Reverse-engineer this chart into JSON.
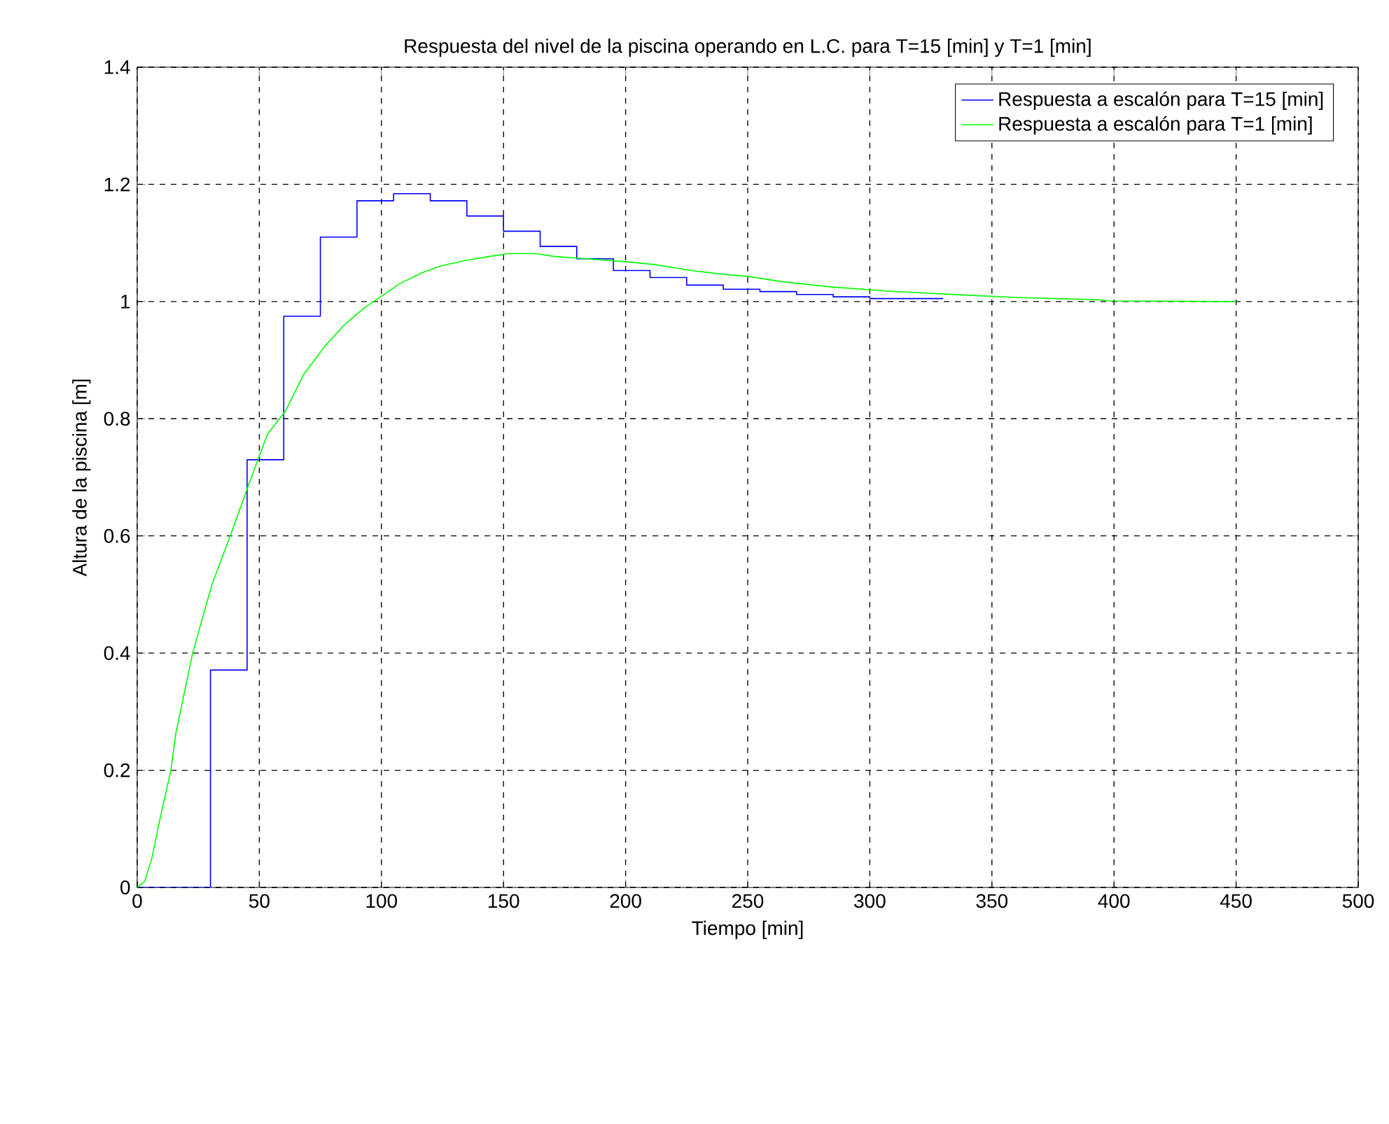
{
  "chart_data": {
    "type": "line",
    "title": "Respuesta del nivel de la piscina operando en L.C. para T=15 [min] y T=1 [min]",
    "xlabel": "Tiempo [min]",
    "ylabel": "Altura de la piscina [m]",
    "xlim": [
      0,
      500
    ],
    "ylim": [
      0,
      1.4
    ],
    "xticks": [
      0,
      50,
      100,
      150,
      200,
      250,
      300,
      350,
      400,
      450,
      500
    ],
    "yticks": [
      0,
      0.2,
      0.4,
      0.6,
      0.8,
      1,
      1.2,
      1.4
    ],
    "grid": true,
    "legend": "top right",
    "marker": "none",
    "line_style": "solid",
    "series": [
      {
        "name": "Respuesta a escalón para T=15 [min]",
        "type": "step",
        "color": "#0000ff",
        "x": [
          0,
          15,
          30,
          45,
          60,
          75,
          90,
          105,
          120,
          135,
          150,
          165,
          180,
          195,
          210,
          225,
          240,
          255,
          270,
          285,
          300,
          315,
          330
        ],
        "values": [
          0,
          0,
          0.371,
          0.73,
          0.975,
          1.11,
          1.172,
          1.184,
          1.172,
          1.146,
          1.12,
          1.094,
          1.073,
          1.053,
          1.041,
          1.028,
          1.021,
          1.017,
          1.012,
          1.008,
          1.005,
          1.005,
          1.005
        ]
      },
      {
        "name": "Respuesta a escalón para T=1 [min]",
        "color": "#00ff00",
        "x": [
          0,
          3,
          6,
          10,
          13.8,
          15.8,
          22.7,
          30.6,
          38.1,
          45.5,
          53.4,
          60.7,
          68.2,
          77.1,
          85,
          92.9,
          96.8,
          107.7,
          116.6,
          124.5,
          134.4,
          144.3,
          152.2,
          163,
          170.7,
          184,
          200,
          212,
          226.8,
          241,
          250,
          263.9,
          283.8,
          306.7,
          339,
          360,
          394,
          398.5,
          450
        ],
        "values": [
          0,
          0.01,
          0.05,
          0.13,
          0.2,
          0.263,
          0.4,
          0.517,
          0.6,
          0.686,
          0.774,
          0.813,
          0.876,
          0.925,
          0.961,
          0.989,
          1.0,
          1.031,
          1.049,
          1.061,
          1.07,
          1.077,
          1.082,
          1.082,
          1.077,
          1.073,
          1.068,
          1.063,
          1.053,
          1.046,
          1.043,
          1.034,
          1.025,
          1.018,
          1.011,
          1.007,
          1.003,
          1.001,
          1.0
        ]
      }
    ]
  }
}
